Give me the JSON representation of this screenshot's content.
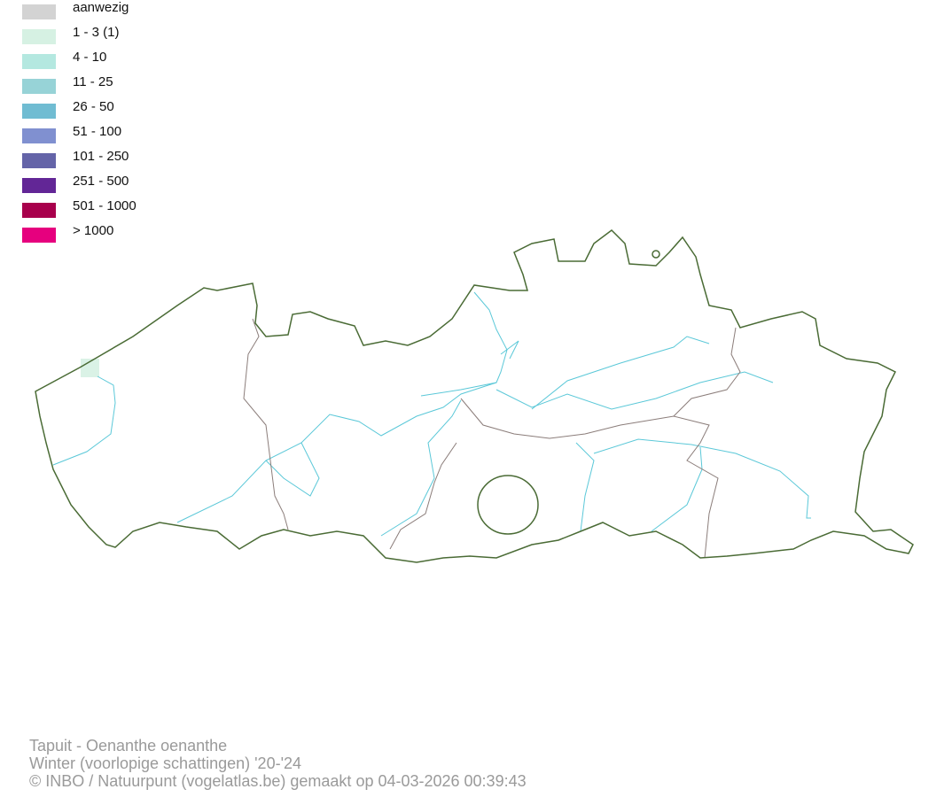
{
  "legend": [
    {
      "label": "aanwezig",
      "color": "#d3d3d3"
    },
    {
      "label": "1 - 3 (1)",
      "color": "#d6f1e3"
    },
    {
      "label": "4 - 10",
      "color": "#b4e8e0"
    },
    {
      "label": "11 - 25",
      "color": "#97d3d7"
    },
    {
      "label": "26 - 50",
      "color": "#70bcd2"
    },
    {
      "label": "51 - 100",
      "color": "#8090d0"
    },
    {
      "label": "101 - 250",
      "color": "#6464a8"
    },
    {
      "label": "251 - 500",
      "color": "#622696"
    },
    {
      "label": "501 - 1000",
      "color": "#a8004c"
    },
    {
      "label": "> 1000",
      "color": "#e6007e"
    }
  ],
  "map": {
    "border_color": "#4a6b35",
    "province_color": "#8b7d7a",
    "river_color": "#5bc8d8",
    "occupied_cells": [
      {
        "class": "1 - 3 (1)",
        "color": "#d6f1e3"
      }
    ]
  },
  "footer": {
    "species": "Tapuit - Oenanthe oenanthe",
    "period": "Winter (voorlopige schattingen) '20-'24",
    "credits": "© INBO / Natuurpunt (vogelatlas.be) gemaakt op 04-03-2026 00:39:43"
  }
}
